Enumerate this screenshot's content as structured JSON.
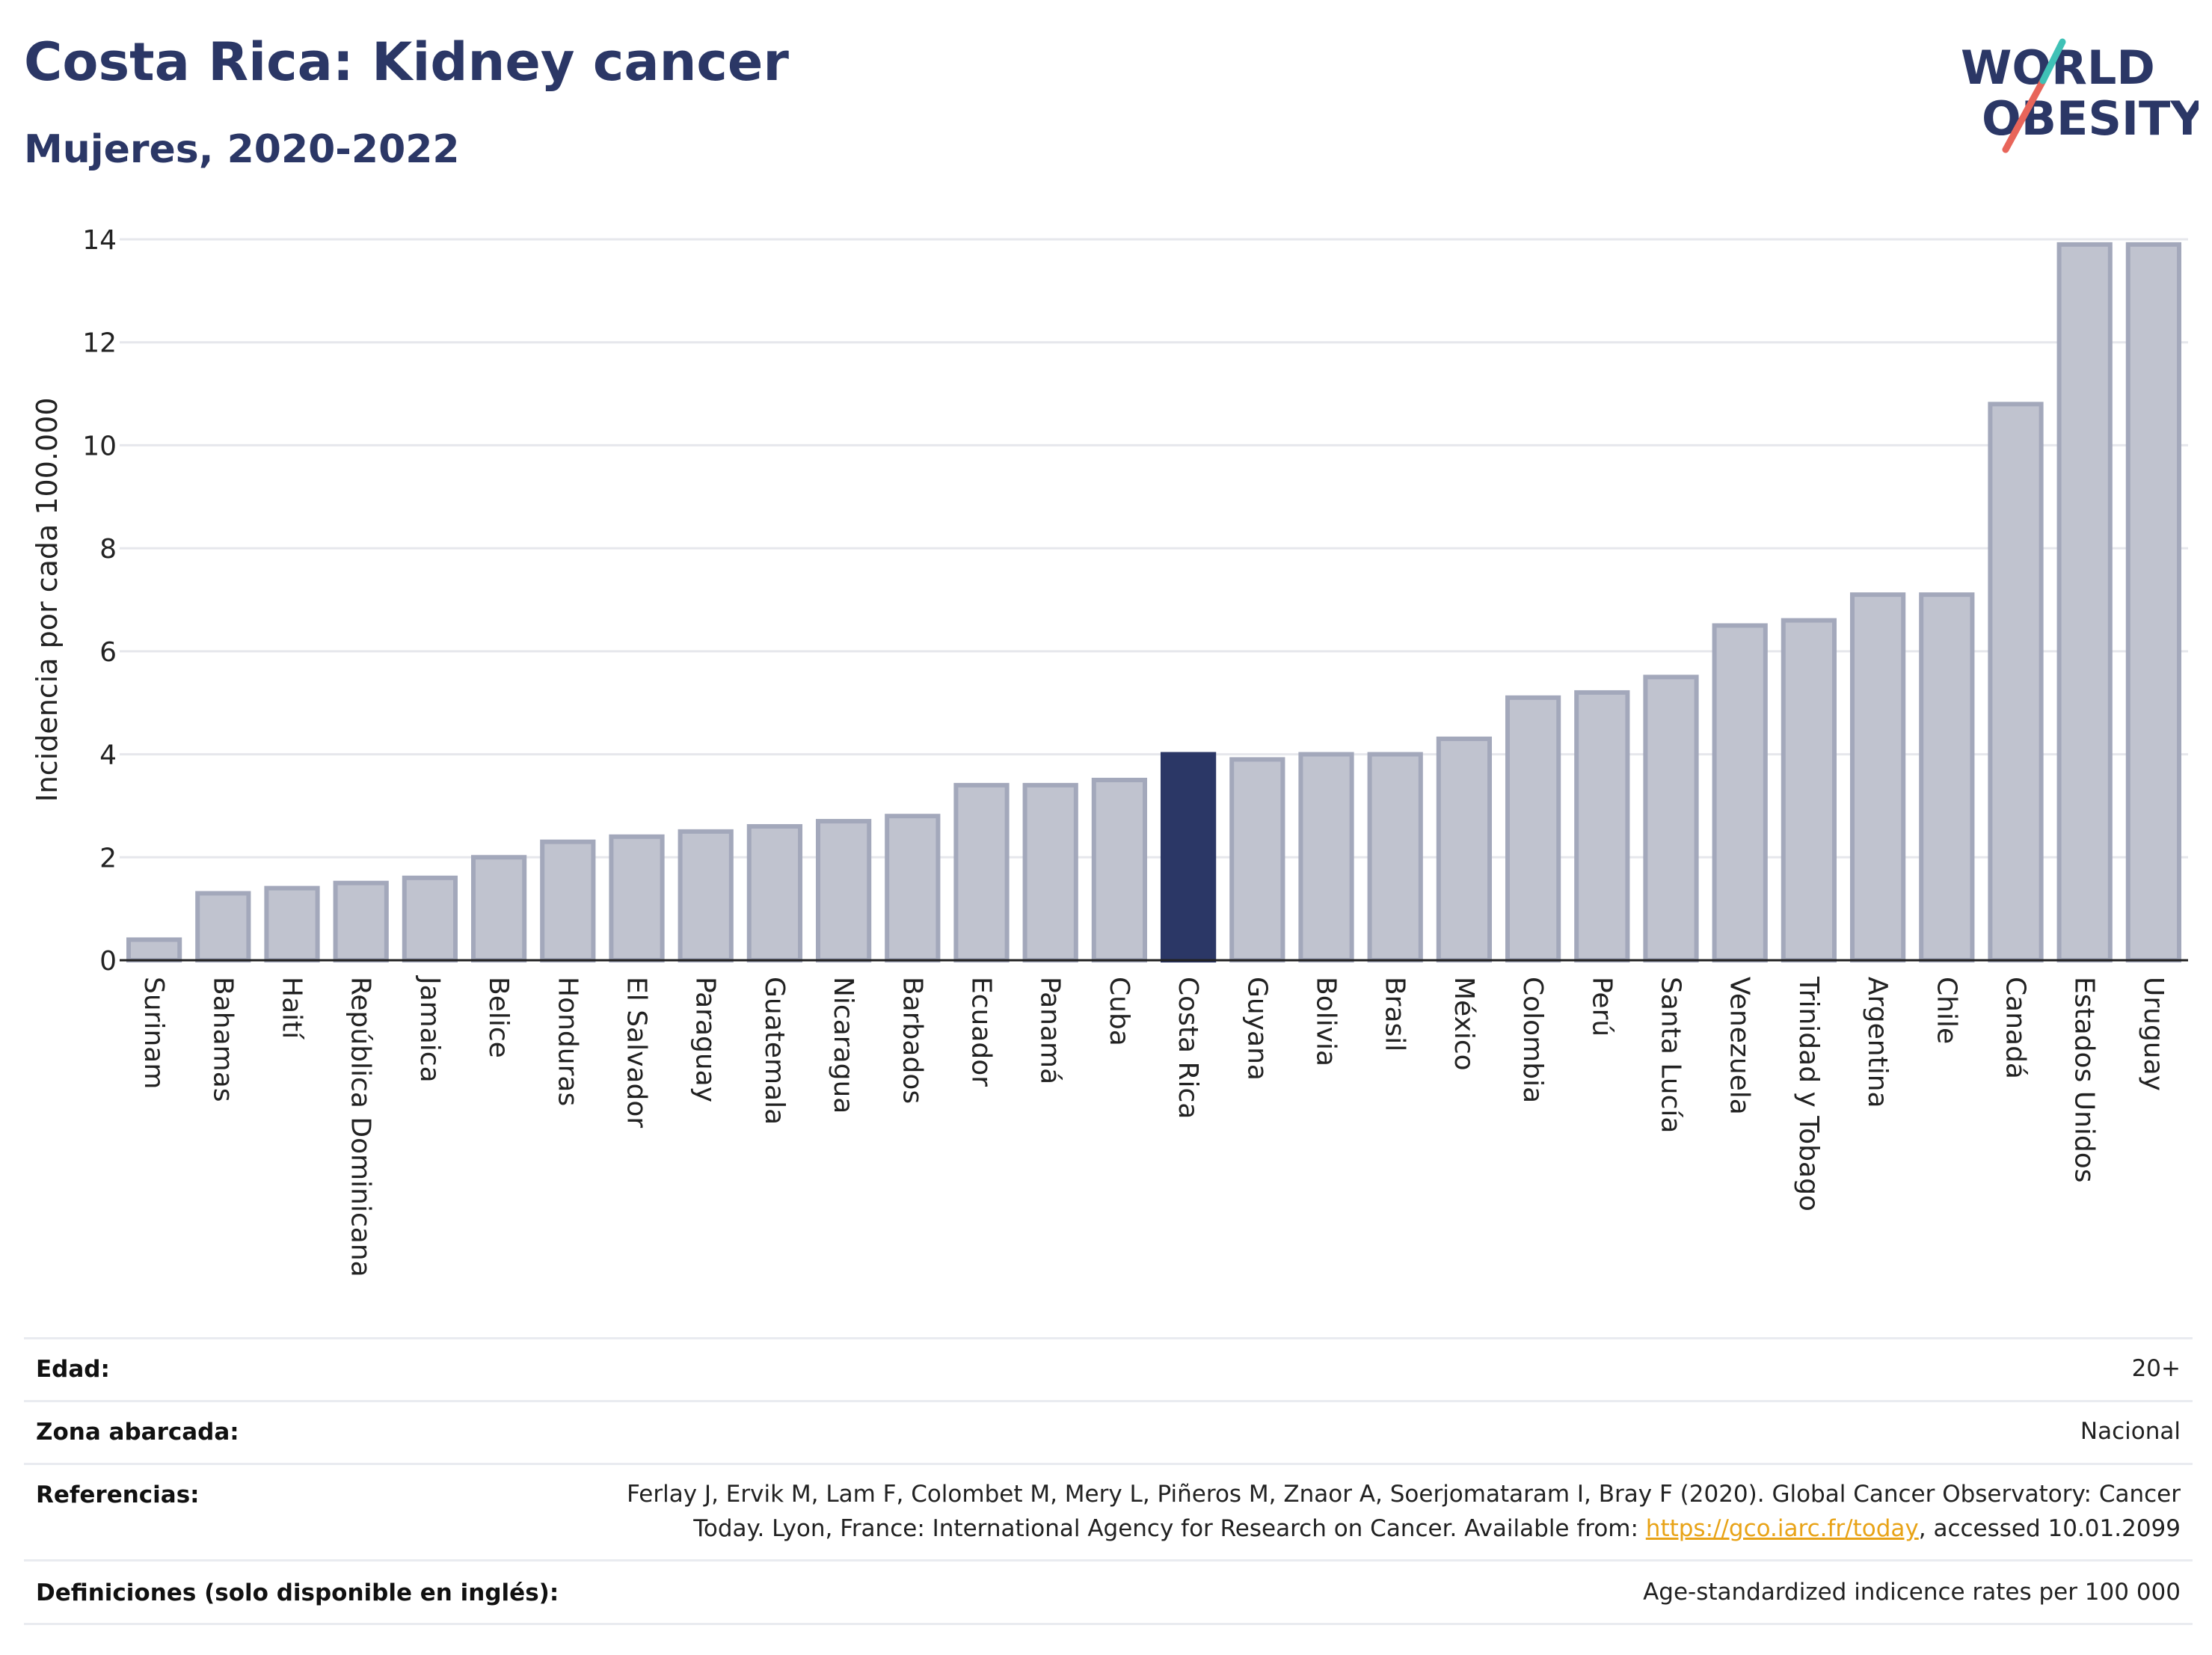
{
  "header": {
    "title": "Costa Rica: Kidney cancer",
    "subtitle": "Mujeres, 2020-2022",
    "logo_line1": "WORLD",
    "logo_line2": "OBESITY"
  },
  "colors": {
    "bar": "#c0c3cf",
    "bar_stroke": "#a3a8bb",
    "highlight": "#2b3766",
    "title": "#2b3766",
    "logo_teal": "#3fc1b6",
    "logo_red": "#e8655a"
  },
  "chart_data": {
    "type": "bar",
    "title": "Costa Rica: Kidney cancer",
    "subtitle": "Mujeres, 2020-2022",
    "xlabel": "",
    "ylabel": "Incidencia por cada 100.000",
    "ylim": [
      0,
      14
    ],
    "yticks": [
      0,
      2,
      4,
      6,
      8,
      10,
      12,
      14
    ],
    "grid": true,
    "highlight": "Costa Rica",
    "categories": [
      "Surinam",
      "Bahamas",
      "Haití",
      "República Dominicana",
      "Jamaica",
      "Belice",
      "Honduras",
      "El Salvador",
      "Paraguay",
      "Guatemala",
      "Nicaragua",
      "Barbados",
      "Ecuador",
      "Panamá",
      "Cuba",
      "Costa Rica",
      "Guyana",
      "Bolivia",
      "Brasil",
      "México",
      "Colombia",
      "Perú",
      "Santa Lucía",
      "Venezuela",
      "Trinidad y Tobago",
      "Argentina",
      "Chile",
      "Canadá",
      "Estados Unidos",
      "Uruguay"
    ],
    "values": [
      0.4,
      1.3,
      1.4,
      1.5,
      1.6,
      2.0,
      2.3,
      2.4,
      2.5,
      2.6,
      2.7,
      2.8,
      3.4,
      3.4,
      3.5,
      4.0,
      3.9,
      4.0,
      4.0,
      4.3,
      5.1,
      5.2,
      5.5,
      6.5,
      6.6,
      7.1,
      7.1,
      10.8,
      13.9,
      13.9
    ]
  },
  "info": {
    "age_label": "Edad:",
    "age_value": "20+",
    "zone_label": "Zona abarcada:",
    "zone_value": "Nacional",
    "refs_label": "Referencias:",
    "refs_line1": "Ferlay J, Ervik M, Lam F, Colombet M, Mery L, Piñeros M, Znaor A, Soerjomataram I, Bray F (2020). Global Cancer Observatory: Cancer",
    "refs_line2_pre": "Today. Lyon, France: International Agency for Research on Cancer. Available from: ",
    "refs_link": "https://gco.iarc.fr/today",
    "refs_line2_post": ", accessed 10.01.2099",
    "defs_label": "Definiciones (solo disponible en inglés):",
    "defs_value": "Age-standardized indicence rates per 100 000"
  }
}
